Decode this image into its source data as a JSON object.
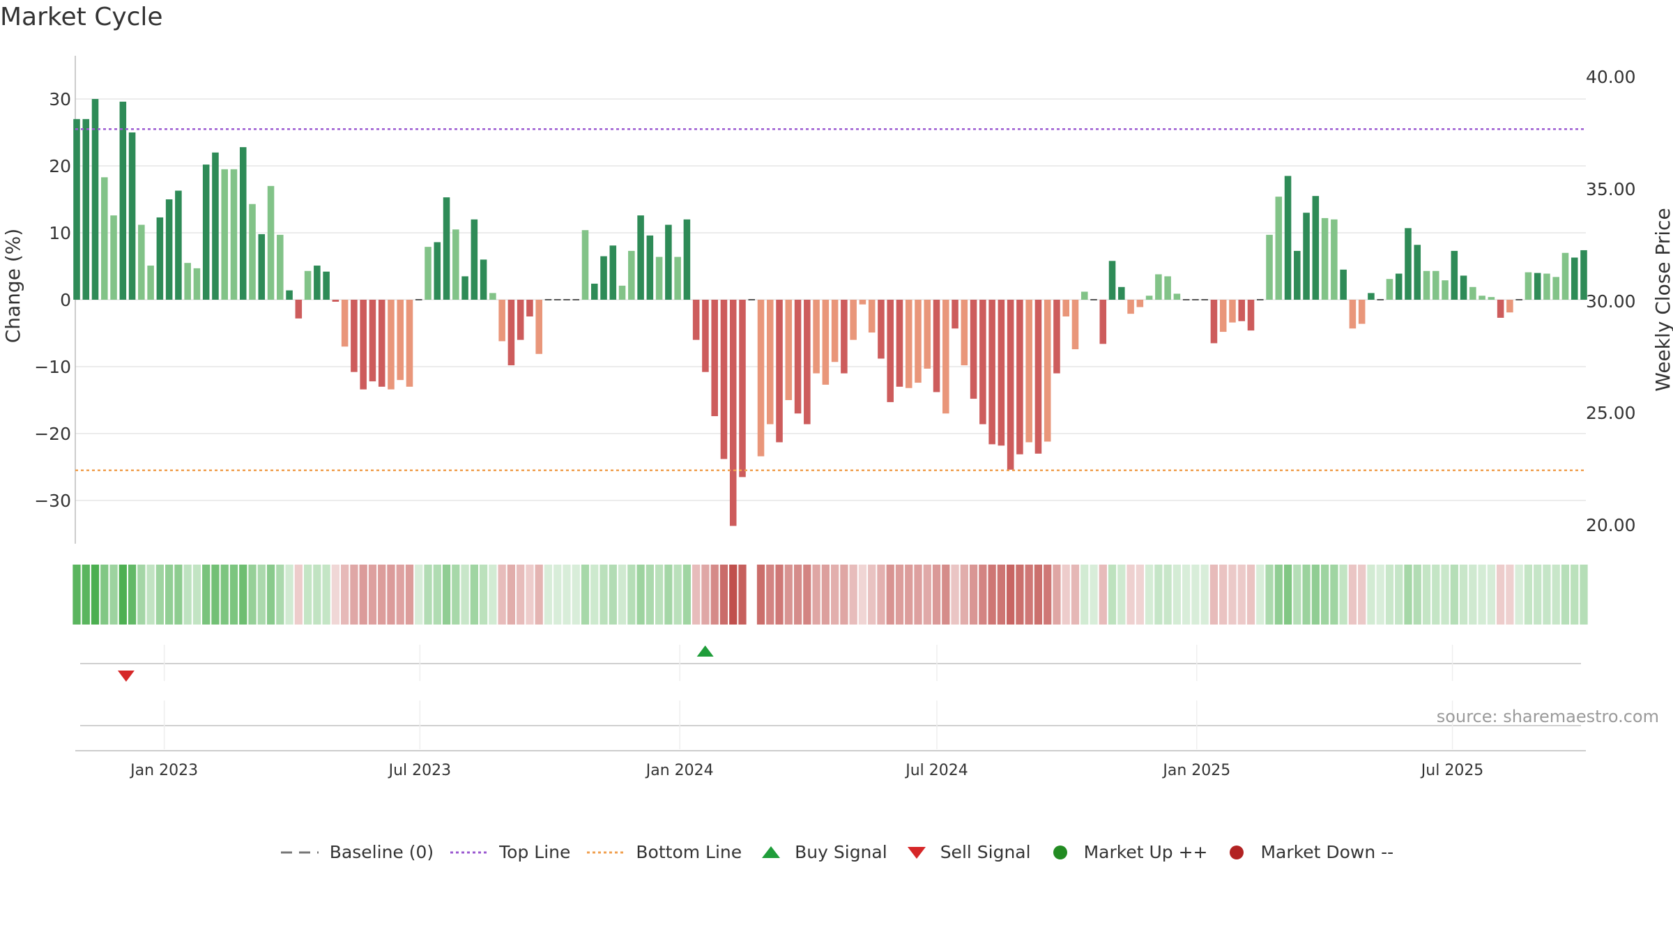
{
  "title": "Market Cycle",
  "source": "source: sharemaestro.com",
  "colors": {
    "up_strong": "#2e8b57",
    "up_weak": "#82c388",
    "down_strong": "#cd5c5c",
    "down_weak": "#e9967a",
    "top_line": "#9b59d0",
    "bottom_line": "#f0a050",
    "buy": "#1f9d3a",
    "sell": "#d62728",
    "market_up": "#228b22",
    "market_down": "#b22222",
    "baseline": "#777777"
  },
  "legend": [
    {
      "key": "baseline",
      "label": "Baseline (0)"
    },
    {
      "key": "top_line",
      "label": "Top Line"
    },
    {
      "key": "bottom_line",
      "label": "Bottom Line"
    },
    {
      "key": "buy",
      "label": "Buy Signal"
    },
    {
      "key": "sell",
      "label": "Sell Signal"
    },
    {
      "key": "market_up",
      "label": "Market Up ++"
    },
    {
      "key": "market_down",
      "label": "Market Down --"
    }
  ],
  "chart_data": {
    "type": "bar",
    "ylabel": "Change (%)",
    "ylabel_right": "Weekly Close Price",
    "ylim": [
      -36,
      36
    ],
    "yticks": [
      30,
      20,
      10,
      0,
      -10,
      -20,
      -30
    ],
    "yticks_right": [
      "40.00",
      "35.00",
      "30.00",
      "25.00",
      "20.00"
    ],
    "top_line": 25.5,
    "bottom_line": -25.5,
    "x_start": "2022-10-31",
    "x_end": "2025-10-02",
    "xticks": [
      {
        "date": "2023-01-01",
        "label": "Jan 2023"
      },
      {
        "date": "2023-07-01",
        "label": "Jul 2023"
      },
      {
        "date": "2024-01-01",
        "label": "Jan 2024"
      },
      {
        "date": "2024-07-01",
        "label": "Jul 2024"
      },
      {
        "date": "2025-01-01",
        "label": "Jan 2025"
      },
      {
        "date": "2025-07-01",
        "label": "Jul 2025"
      }
    ],
    "bar_colors": [
      "s",
      "s",
      "s",
      "w",
      "w",
      "s",
      "s",
      "w",
      "w",
      "s",
      "s",
      "s",
      "w",
      "w",
      "s",
      "s",
      "w",
      "w",
      "s",
      "w",
      "s",
      "w",
      "w",
      "s",
      "s",
      "w",
      "s",
      "s",
      "s",
      "w",
      "s",
      "s",
      "s",
      "s",
      "w",
      "w",
      "w",
      "w",
      "w",
      "s",
      "s",
      "w",
      "s",
      "s",
      "s",
      "w",
      "w",
      "s",
      "s",
      "s",
      "w",
      "w",
      "s",
      "s",
      "s",
      "w",
      "s",
      "s",
      "s",
      "w",
      "w",
      "s",
      "s",
      "w",
      "s",
      "w",
      "s",
      "s",
      "s",
      "s",
      "s",
      "s",
      "s",
      "w",
      "w",
      "w",
      "s",
      "w",
      "s",
      "s",
      "w",
      "w",
      "w",
      "s",
      "w",
      "w",
      "w",
      "s",
      "s",
      "s",
      "w",
      "w",
      "w",
      "s",
      "w",
      "s",
      "w",
      "s",
      "s",
      "s",
      "s",
      "s",
      "s",
      "w",
      "s",
      "w",
      "s",
      "w",
      "w",
      "w",
      "s",
      "s",
      "s",
      "s",
      "w",
      "w",
      "w",
      "w",
      "w",
      "w",
      "s",
      "s",
      "w",
      "s",
      "w",
      "w",
      "s",
      "s",
      "s",
      "w",
      "w",
      "s",
      "s",
      "s",
      "s",
      "w",
      "w",
      "s",
      "w",
      "w",
      "s",
      "w",
      "w",
      "s",
      "s",
      "s",
      "w",
      "w",
      "w",
      "s",
      "s",
      "w",
      "w",
      "w",
      "s",
      "w",
      "w",
      "w",
      "s",
      "w",
      "w",
      "w",
      "s",
      "s",
      "s",
      "w"
    ],
    "values": [
      27,
      27,
      30,
      18.3,
      12.6,
      29.6,
      25,
      11.2,
      5.1,
      12.3,
      15,
      16.3,
      5.5,
      4.7,
      20.2,
      22,
      19.5,
      19.5,
      22.8,
      14.3,
      9.8,
      17,
      9.7,
      1.4,
      -2.8,
      4.3,
      5.1,
      4.2,
      -0.3,
      -7,
      -10.8,
      -13.4,
      -12.2,
      -13,
      -13.4,
      -12,
      -13,
      0,
      7.9,
      8.6,
      15.3,
      10.5,
      3.5,
      12,
      6,
      1,
      -6.2,
      -9.8,
      -6,
      -2.5,
      -8.1,
      0,
      0,
      0,
      0,
      10.4,
      2.4,
      6.5,
      8.1,
      2.1,
      7.3,
      12.6,
      9.6,
      6.4,
      11.2,
      6.4,
      12,
      -6,
      -10.8,
      -17.4,
      -23.8,
      -33.8,
      -26.5,
      0,
      -23.4,
      -18.6,
      -21.3,
      -15,
      -17,
      -18.6,
      -11,
      -12.7,
      -9.3,
      -11,
      -6,
      -0.7,
      -4.9,
      -8.8,
      -15.3,
      -13,
      -13.2,
      -12.4,
      -10.3,
      -13.8,
      -17,
      -4.3,
      -9.8,
      -14.8,
      -18.6,
      -21.6,
      -21.8,
      -25.4,
      -23.1,
      -21.3,
      -23,
      -21.2,
      -11,
      -2.5,
      -7.4,
      1.2,
      0,
      -6.6,
      5.8,
      1.9,
      -2.1,
      -1.1,
      0.6,
      3.8,
      3.5,
      0.9,
      0,
      0,
      0,
      -6.5,
      -4.8,
      -3.4,
      -3.2,
      -4.6,
      0,
      9.7,
      15.4,
      18.5,
      7.3,
      13,
      15.5,
      12.2,
      12,
      4.5,
      -4.3,
      -3.6,
      1,
      0,
      3.1,
      3.9,
      10.7,
      8.2,
      4.3,
      4.3,
      2.9,
      7.3,
      3.6,
      1.9,
      0.6,
      0.4,
      -2.7,
      -1.9,
      0,
      4.1,
      4,
      3.9,
      3.4,
      7,
      6.3,
      7.4
    ],
    "heat_gap_index": 73,
    "buy_signals": [
      "2024-01-19"
    ],
    "sell_signals": [
      "2022-12-05"
    ]
  }
}
